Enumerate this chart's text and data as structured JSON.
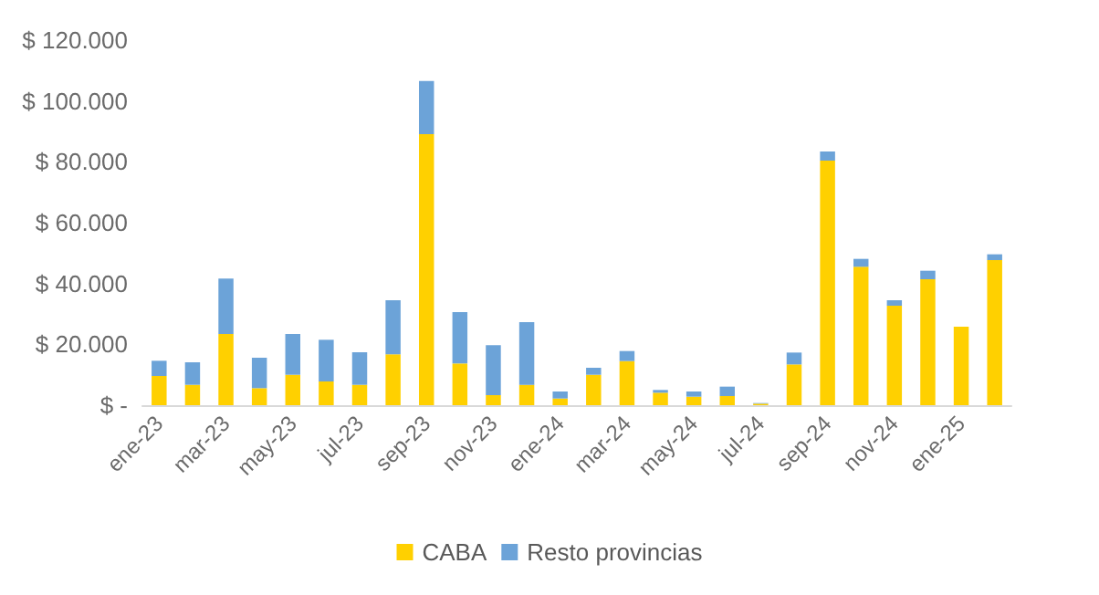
{
  "chart_data": {
    "type": "bar",
    "stacked": true,
    "categories": [
      "ene-23",
      null,
      "mar-23",
      null,
      "may-23",
      null,
      "jul-23",
      null,
      "sep-23",
      null,
      "nov-23",
      null,
      "ene-24",
      null,
      "mar-24",
      null,
      "may-24",
      null,
      "jul-24",
      null,
      "sep-24",
      null,
      "nov-24",
      null,
      "ene-25",
      null
    ],
    "series": [
      {
        "name": "CABA",
        "color": "#ffd000",
        "values": [
          9600,
          6700,
          23400,
          5600,
          10000,
          7800,
          6700,
          16700,
          89100,
          13700,
          3300,
          6700,
          2200,
          10000,
          14500,
          4100,
          2800,
          3000,
          500,
          13400,
          80400,
          45500,
          32700,
          41400,
          25800,
          47700
        ]
      },
      {
        "name": "Resto provincias",
        "color": "#6ca3d8",
        "values": [
          5000,
          7400,
          18200,
          10000,
          13400,
          13700,
          10700,
          17800,
          17500,
          16900,
          16400,
          20600,
          2300,
          2300,
          3300,
          900,
          1700,
          3100,
          200,
          3900,
          3000,
          2600,
          1800,
          2800,
          0,
          1900
        ]
      }
    ],
    "ylim": [
      0,
      120000
    ],
    "yticks": [
      {
        "value": 0,
        "label": "$ -"
      },
      {
        "value": 20000,
        "label": "$ 20.000"
      },
      {
        "value": 40000,
        "label": "$ 40.000"
      },
      {
        "value": 60000,
        "label": "$ 60.000"
      },
      {
        "value": 80000,
        "label": "$ 80.000"
      },
      {
        "value": 100000,
        "label": "$ 100.000"
      },
      {
        "value": 120000,
        "label": "$ 120.000"
      }
    ],
    "grid": false,
    "legend": "bottom"
  }
}
